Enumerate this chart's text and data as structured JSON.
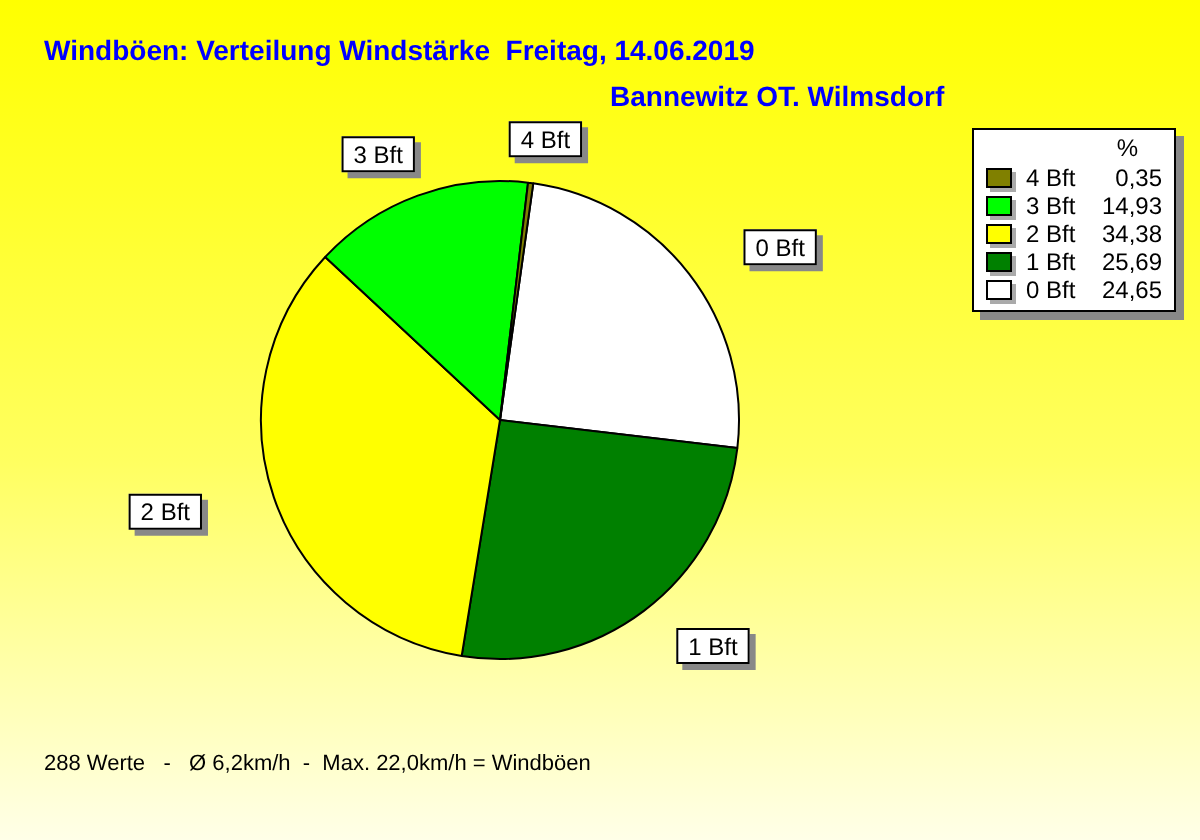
{
  "chart_data": {
    "type": "pie",
    "title": "Windböen: Verteilung Windstärke  Freitag, 14.06.2019",
    "subtitle": "Bannewitz OT. Wilmsdorf",
    "categories": [
      "0 Bft",
      "1 Bft",
      "2 Bft",
      "3 Bft",
      "4 Bft"
    ],
    "values": [
      24.65,
      25.69,
      34.38,
      14.93,
      0.35
    ],
    "value_labels": [
      "24,65",
      "25,69",
      "34,38",
      "14,93",
      "0,35"
    ],
    "colors": [
      "#ffffff",
      "#008000",
      "#ffff00",
      "#00ff00",
      "#808000"
    ],
    "legend": "top right",
    "legend_title": "%",
    "annotations": [
      "288 Werte   -   Ø 6,2km/h  -  Max. 22,0km/h = Windböen"
    ]
  }
}
